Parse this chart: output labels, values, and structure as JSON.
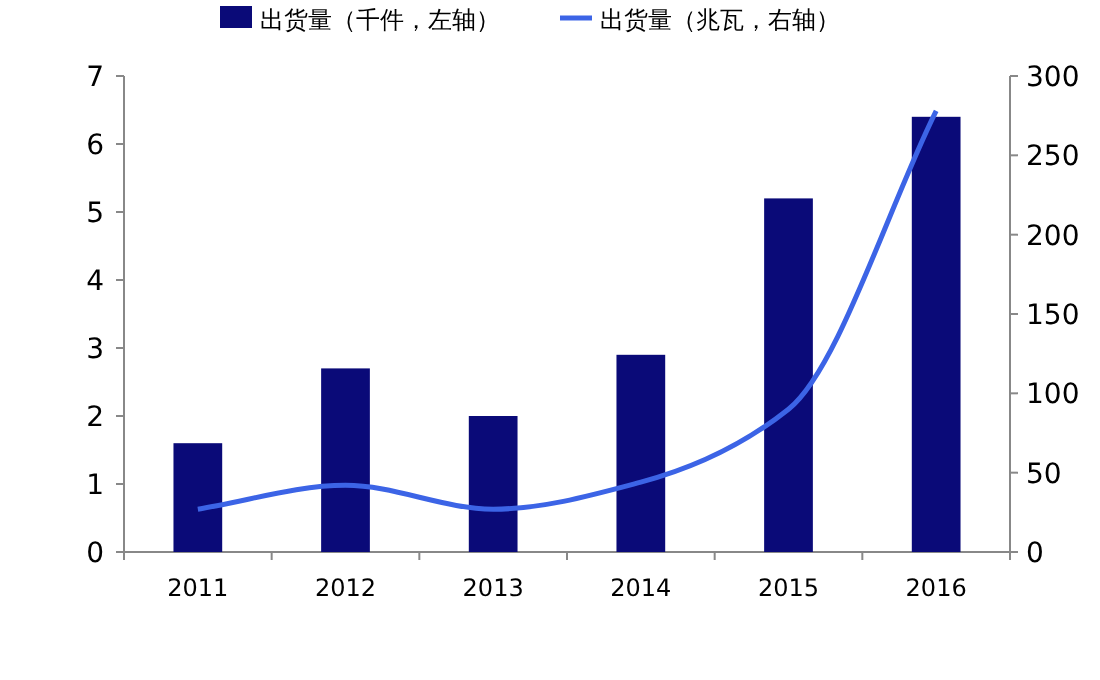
{
  "chart_data": {
    "type": "bar",
    "categories": [
      "2011",
      "2012",
      "2013",
      "2014",
      "2015",
      "2016"
    ],
    "series": [
      {
        "name": "出货量（千件，左轴）",
        "color": "#0a0a78",
        "values": [
          1.6,
          2.7,
          2.0,
          2.9,
          5.2,
          6.4
        ]
      },
      {
        "name": "出货量（兆瓦，右轴）",
        "type": "line",
        "axis": "y2",
        "color": "#3c64e6",
        "values": [
          27,
          42,
          27,
          44,
          90,
          278
        ]
      }
    ],
    "ylim": [
      0,
      7
    ],
    "yticks": [
      0,
      1,
      2,
      3,
      4,
      5,
      6,
      7
    ],
    "y2lim": [
      0,
      300
    ],
    "y2ticks": [
      0,
      50,
      100,
      150,
      200,
      250,
      300
    ],
    "grid": false,
    "legend": "top",
    "marker": "none",
    "line_style": "solid"
  }
}
